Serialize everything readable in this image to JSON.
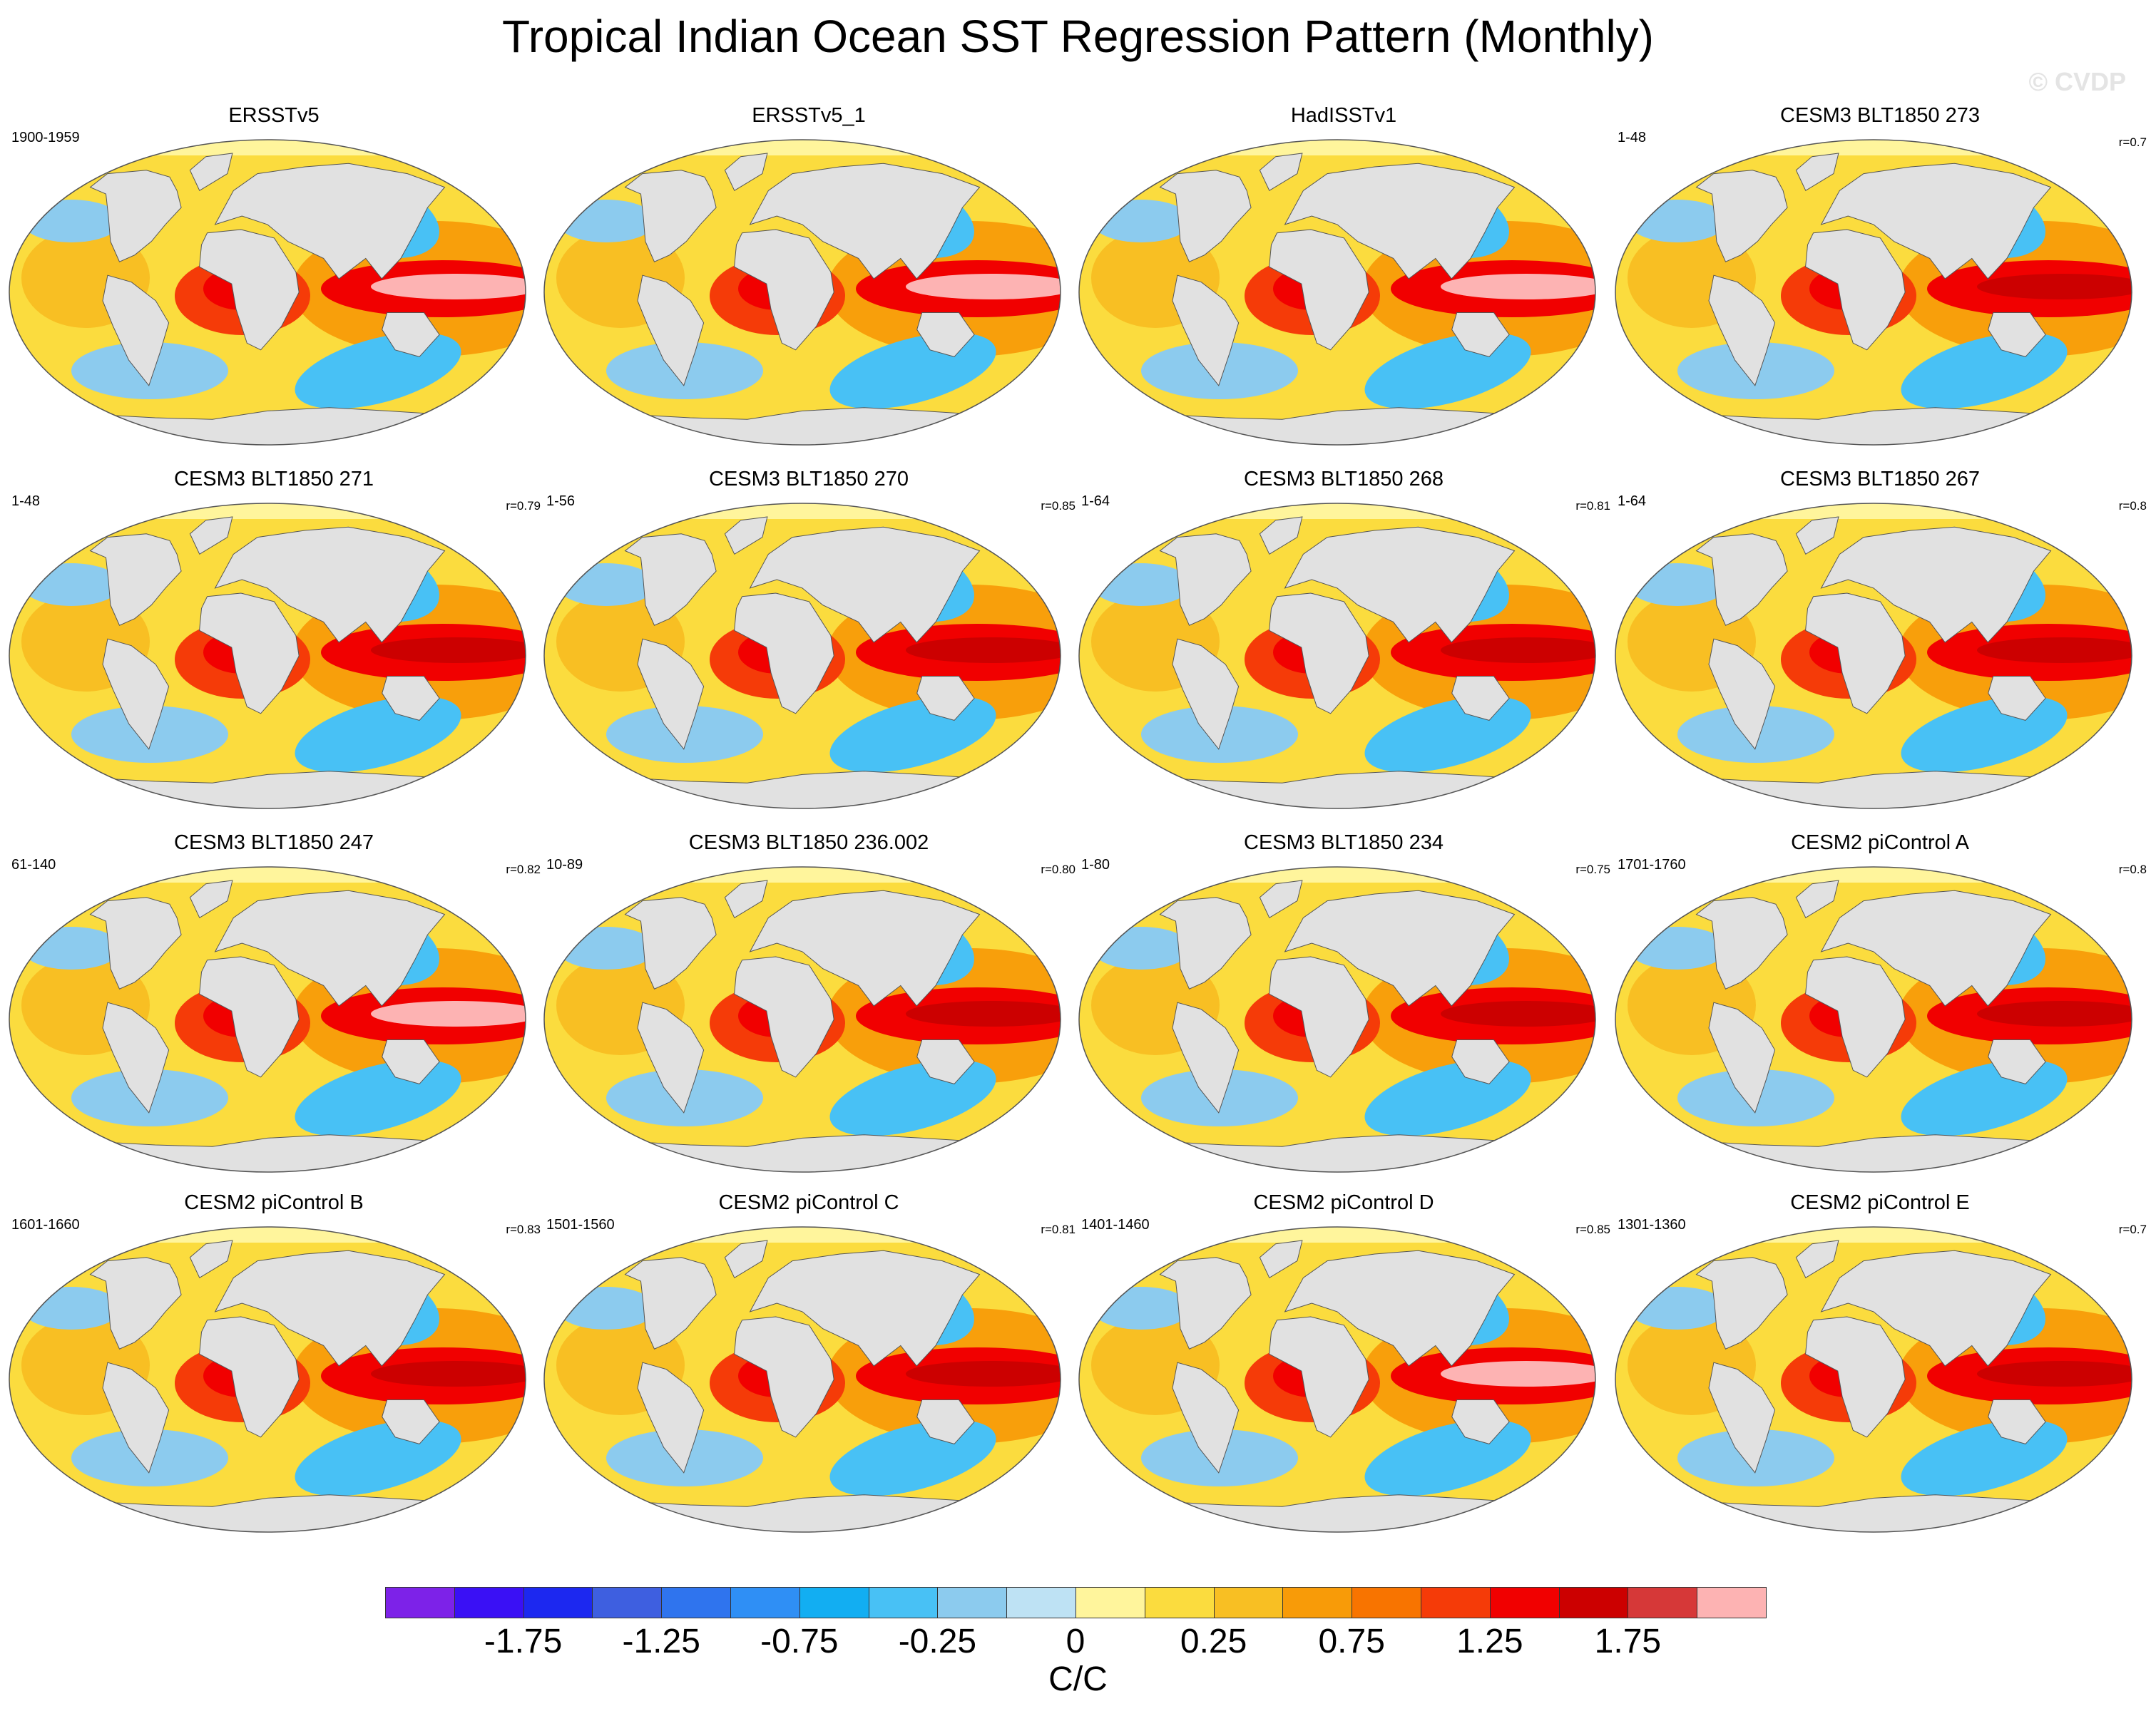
{
  "title": "Tropical Indian Ocean SST Regression Pattern (Monthly)",
  "watermark": "© CVDP",
  "panels": [
    {
      "title": "ERSSTv5",
      "years": "1900-1959",
      "r": ""
    },
    {
      "title": "ERSSTv5_1",
      "years": "",
      "r": ""
    },
    {
      "title": "HadISSTv1",
      "years": "",
      "r": ""
    },
    {
      "title": "CESM3 BLT1850 273",
      "years": "1-48",
      "r": "r=0.7"
    },
    {
      "title": "CESM3 BLT1850 271",
      "years": "1-48",
      "r": "r=0.79"
    },
    {
      "title": "CESM3 BLT1850 270",
      "years": "1-56",
      "r": "r=0.85"
    },
    {
      "title": "CESM3 BLT1850 268",
      "years": "1-64",
      "r": "r=0.81"
    },
    {
      "title": "CESM3 BLT1850 267",
      "years": "1-64",
      "r": "r=0.8"
    },
    {
      "title": "CESM3 BLT1850 247",
      "years": "61-140",
      "r": "r=0.82"
    },
    {
      "title": "CESM3 BLT1850 236.002",
      "years": "10-89",
      "r": "r=0.80"
    },
    {
      "title": "CESM3 BLT1850 234",
      "years": "1-80",
      "r": "r=0.75"
    },
    {
      "title": "CESM2 piControl A",
      "years": "1701-1760",
      "r": "r=0.8"
    },
    {
      "title": "CESM2 piControl B",
      "years": "1601-1660",
      "r": "r=0.83"
    },
    {
      "title": "CESM2 piControl C",
      "years": "1501-1560",
      "r": "r=0.81"
    },
    {
      "title": "CESM2 piControl D",
      "years": "1401-1460",
      "r": "r=0.85"
    },
    {
      "title": "CESM2 piControl E",
      "years": "1301-1360",
      "r": "r=0.7"
    }
  ],
  "colorbar": {
    "colors": [
      "#7d22e8",
      "#3a10f5",
      "#1c28f0",
      "#3e5fe0",
      "#2f74ee",
      "#2f8ff5",
      "#12aef2",
      "#48c1f5",
      "#8ccbee",
      "#bee2f4",
      "#fff59c",
      "#fbdc3e",
      "#f8bf23",
      "#f89b08",
      "#f87400",
      "#f53b08",
      "#f10000",
      "#cc0000",
      "#d63838",
      "#fdb3b3"
    ],
    "labels": [
      "-1.75",
      "-1.25",
      "-0.75",
      "-0.25",
      "0",
      "0.25",
      "0.75",
      "1.25",
      "1.75"
    ],
    "units": "C/C"
  },
  "colors": {
    "land": "#e1e1e1",
    "sea_ice": "#fff59c",
    "warm": "#f87400",
    "cool": "#48c1f5"
  }
}
